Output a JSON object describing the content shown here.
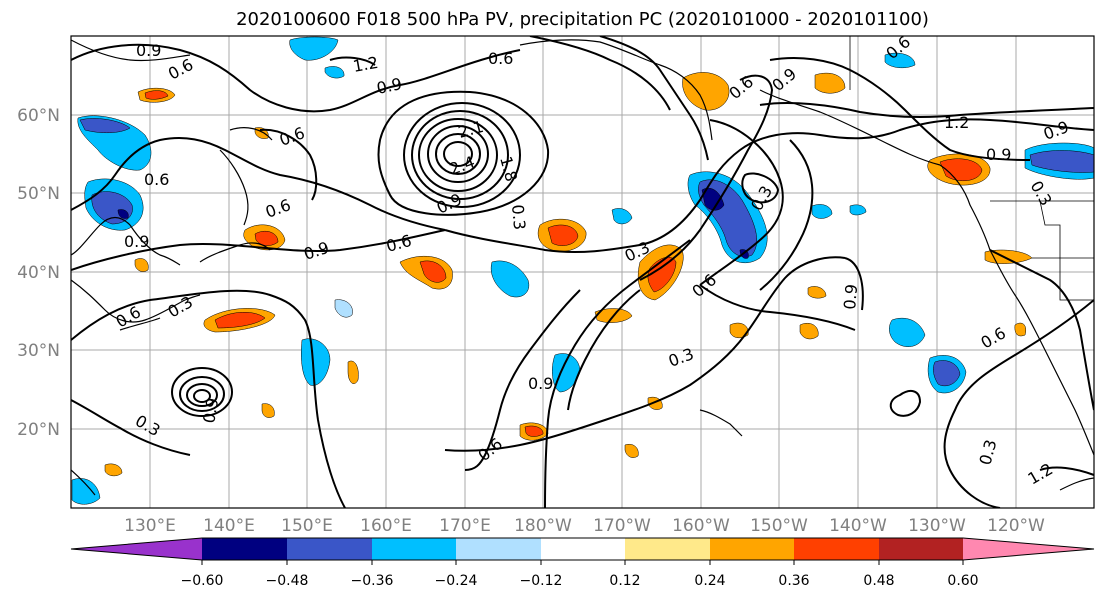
{
  "title": "2020100600 F018 500 hPa PV, precipitation PC (2020101000 - 2020101100)",
  "lat_ticks": [
    "60°N",
    "50°N",
    "40°N",
    "30°N",
    "20°N"
  ],
  "lon_ticks": [
    "130°E",
    "140°E",
    "150°E",
    "160°E",
    "170°E",
    "180°W",
    "170°W",
    "160°W",
    "150°W",
    "140°W",
    "130°W",
    "120°W"
  ],
  "colorbar": {
    "labels": [
      "−0.60",
      "−0.48",
      "−0.36",
      "−0.24",
      "−0.12",
      "0.12",
      "0.24",
      "0.36",
      "0.48",
      "0.60"
    ],
    "colors": [
      "#9932cc",
      "#000080",
      "#3a56c8",
      "#00bfff",
      "#b0e0ff",
      "#ffffff",
      "#ffe98a",
      "#ffa500",
      "#ff4000",
      "#b22222",
      "#ff88b0"
    ]
  },
  "contour_labels": [
    "0.9",
    "0.6",
    "1.2",
    "0.9",
    "0.6",
    "0.6",
    "0.6",
    "0.9",
    "0.6",
    "0.9",
    "1.2",
    "0.9",
    "0.3",
    "0.3",
    "0.9",
    "0.6",
    "0.3",
    "0.6",
    "2.4",
    "2.1",
    "1.8",
    "0.9",
    "0.3",
    "0.6",
    "0.6",
    "0.3",
    "0.3",
    "0.6",
    "0.9",
    "1.2",
    "0.9",
    "0.9",
    "0.6",
    "0.3",
    "0.3",
    "0.6",
    "0.9"
  ]
}
